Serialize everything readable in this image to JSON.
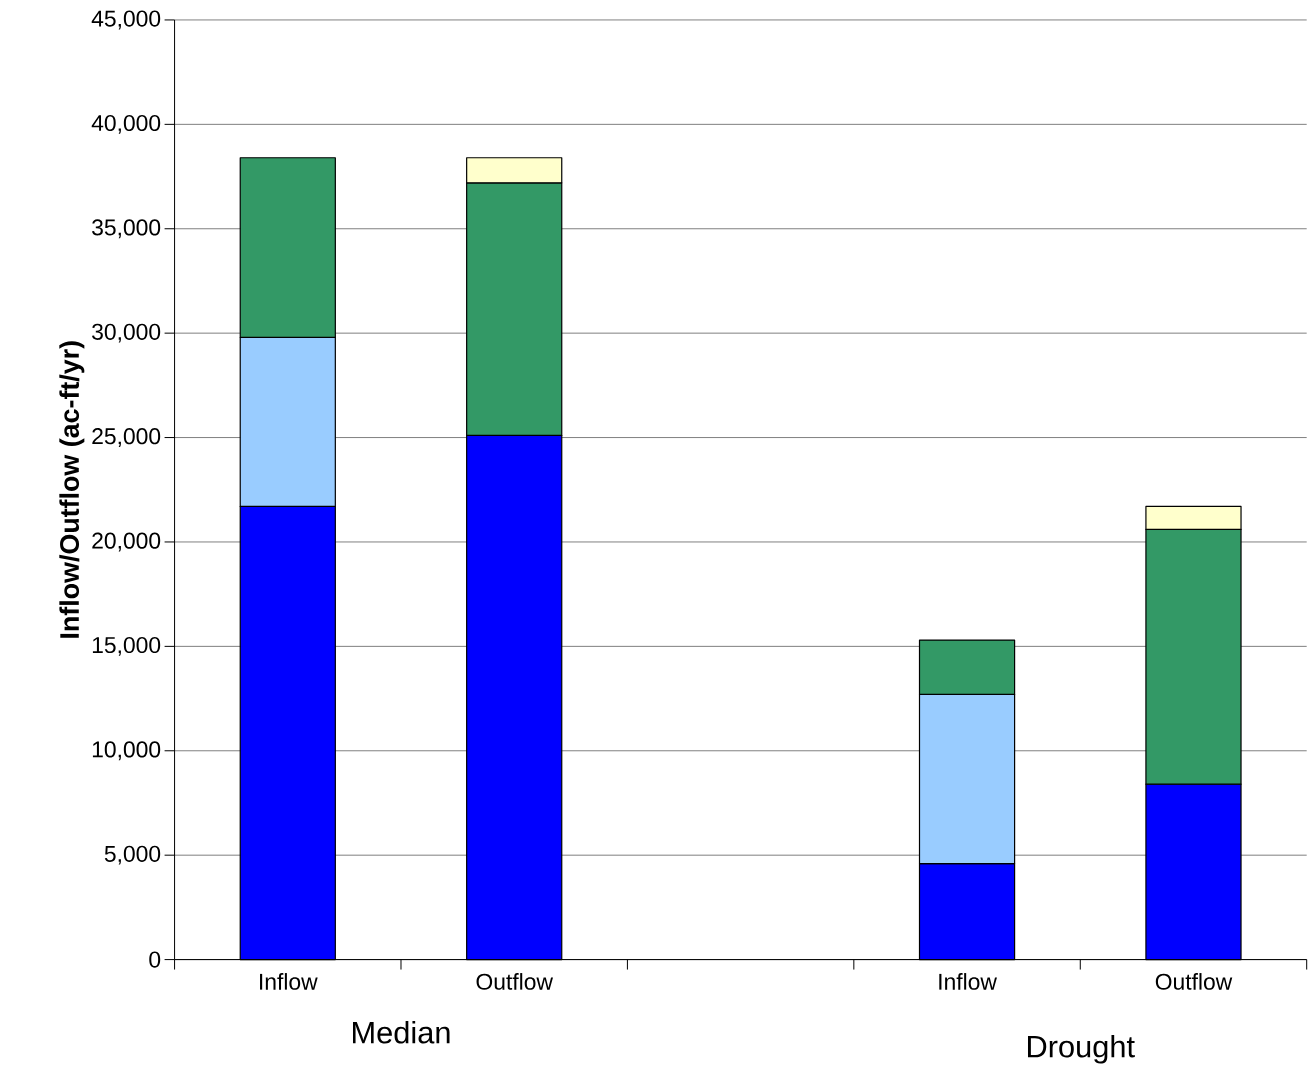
{
  "chart_data": {
    "type": "bar",
    "stacked": true,
    "ylabel": "Inflow/Outflow (ac-ft/yr)",
    "categories": [
      "Inflow",
      "Outflow",
      null,
      "Inflow",
      "Outflow"
    ],
    "series": [
      {
        "color": "#0000ff",
        "values": [
          21700,
          25100,
          null,
          4600,
          8400
        ]
      },
      {
        "color": "#99ccff",
        "values": [
          8100,
          null,
          null,
          8100,
          null
        ]
      },
      {
        "color": "#339966",
        "values": [
          8600,
          12100,
          null,
          2600,
          12200
        ]
      },
      {
        "color": "#ffffcc",
        "values": [
          null,
          1200,
          null,
          null,
          1100
        ]
      }
    ],
    "ylim": [
      0,
      45000
    ],
    "yticks": [
      0,
      {
        "value": 5000,
        "label": "5,000"
      },
      {
        "value": 10000,
        "label": "10,000"
      },
      {
        "value": 15000,
        "label": "15,000"
      },
      {
        "value": 20000,
        "label": "20,000"
      },
      {
        "value": 25000,
        "label": "25,000"
      },
      {
        "value": 30000,
        "label": "30,000"
      },
      {
        "value": 35000,
        "label": "35,000"
      },
      {
        "value": 40000,
        "label": "40,000"
      },
      {
        "value": 45000,
        "label": "45,000"
      }
    ],
    "grid": "y",
    "annotations": [
      "Median",
      "Drought"
    ]
  }
}
